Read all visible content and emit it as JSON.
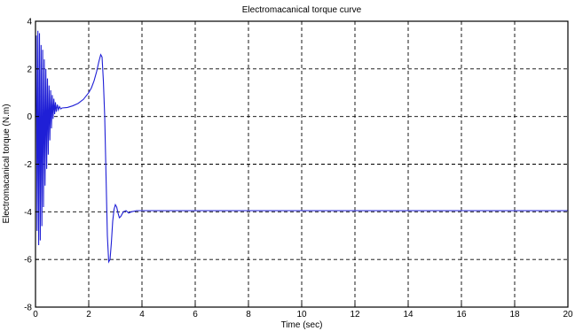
{
  "chart_data": {
    "type": "line",
    "title": "Electromacanical torque curve",
    "xlabel": "Time (sec)",
    "ylabel": "Electromacanical torque (N.m)",
    "xlim": [
      0,
      20
    ],
    "ylim": [
      -8,
      4
    ],
    "xticks": [
      0,
      2,
      4,
      6,
      8,
      10,
      12,
      14,
      16,
      18,
      20
    ],
    "yticks": [
      -8,
      -6,
      -4,
      -2,
      0,
      2,
      4
    ],
    "xtick_labels": [
      "0",
      "2",
      "4",
      "6",
      "8",
      "10",
      "12",
      "14",
      "16",
      "18",
      "20"
    ],
    "ytick_labels": [
      "-8",
      "-6",
      "-4",
      "-2",
      "0",
      "2",
      "4"
    ],
    "grid": true,
    "series_color": "#1f1fd6",
    "series": [
      {
        "points": [
          [
            0.0,
            0.0
          ],
          [
            0.03,
            3.4
          ],
          [
            0.06,
            -4.8
          ],
          [
            0.09,
            3.6
          ],
          [
            0.12,
            -5.4
          ],
          [
            0.15,
            3.5
          ],
          [
            0.18,
            -5.2
          ],
          [
            0.21,
            3.0
          ],
          [
            0.24,
            -4.6
          ],
          [
            0.27,
            2.8
          ],
          [
            0.3,
            -3.8
          ],
          [
            0.33,
            2.4
          ],
          [
            0.36,
            -2.9
          ],
          [
            0.39,
            2.0
          ],
          [
            0.42,
            -2.2
          ],
          [
            0.45,
            1.6
          ],
          [
            0.48,
            -1.6
          ],
          [
            0.51,
            1.3
          ],
          [
            0.54,
            -1.0
          ],
          [
            0.57,
            1.1
          ],
          [
            0.6,
            -0.5
          ],
          [
            0.63,
            0.9
          ],
          [
            0.66,
            -0.1
          ],
          [
            0.69,
            0.75
          ],
          [
            0.72,
            0.1
          ],
          [
            0.75,
            0.6
          ],
          [
            0.78,
            0.2
          ],
          [
            0.82,
            0.5
          ],
          [
            0.86,
            0.28
          ],
          [
            0.9,
            0.42
          ],
          [
            0.95,
            0.32
          ],
          [
            1.0,
            0.36
          ],
          [
            1.2,
            0.38
          ],
          [
            1.4,
            0.45
          ],
          [
            1.6,
            0.55
          ],
          [
            1.8,
            0.72
          ],
          [
            2.0,
            1.0
          ],
          [
            2.1,
            1.2
          ],
          [
            2.2,
            1.5
          ],
          [
            2.3,
            1.9
          ],
          [
            2.38,
            2.3
          ],
          [
            2.45,
            2.6
          ],
          [
            2.5,
            2.5
          ],
          [
            2.55,
            1.5
          ],
          [
            2.6,
            0.0
          ],
          [
            2.65,
            -2.5
          ],
          [
            2.7,
            -5.0
          ],
          [
            2.75,
            -6.1
          ],
          [
            2.8,
            -6.0
          ],
          [
            2.85,
            -5.3
          ],
          [
            2.9,
            -4.4
          ],
          [
            2.95,
            -3.9
          ],
          [
            3.0,
            -3.7
          ],
          [
            3.05,
            -3.8
          ],
          [
            3.1,
            -4.05
          ],
          [
            3.15,
            -4.25
          ],
          [
            3.2,
            -4.2
          ],
          [
            3.3,
            -4.0
          ],
          [
            3.4,
            -3.95
          ],
          [
            3.5,
            -4.05
          ],
          [
            3.6,
            -4.0
          ],
          [
            3.8,
            -3.95
          ],
          [
            4.0,
            -3.95
          ],
          [
            6.0,
            -3.95
          ],
          [
            8.0,
            -3.95
          ],
          [
            10.0,
            -3.95
          ],
          [
            12.0,
            -3.95
          ],
          [
            14.0,
            -3.95
          ],
          [
            16.0,
            -3.95
          ],
          [
            18.0,
            -3.95
          ],
          [
            20.0,
            -3.95
          ]
        ]
      }
    ]
  }
}
